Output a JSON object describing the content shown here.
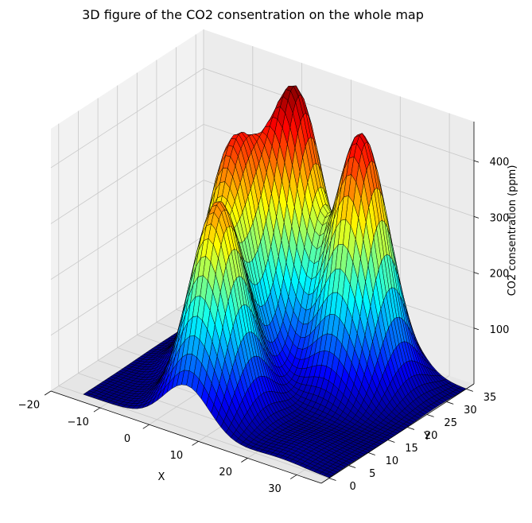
{
  "chart_data": {
    "type": "surface",
    "title": "3D figure of the CO2 consentration on the whole map",
    "xlabel": "X",
    "ylabel": "Y",
    "zlabel": "CO2 consentration (ppm)",
    "colormap": "jet",
    "xlim": [
      -20,
      35
    ],
    "ylim": [
      -2,
      37
    ],
    "zlim": [
      0,
      470
    ],
    "x_ticks": [
      -20,
      -10,
      0,
      10,
      20,
      30
    ],
    "y_ticks": [
      0,
      5,
      10,
      15,
      20,
      25,
      30,
      35
    ],
    "z_ticks": [
      100,
      200,
      300,
      400
    ],
    "grid": true,
    "surface_grid": {
      "x_range": [
        -15,
        35
      ],
      "y_range": [
        0,
        35
      ],
      "steps": 50
    },
    "peaks": [
      {
        "x": 6,
        "y": 28,
        "height": 460,
        "sigma": 4.6
      },
      {
        "x": 20,
        "y": 27,
        "height": 445,
        "sigma": 4.6
      },
      {
        "x": 0,
        "y": 19,
        "height": 380,
        "sigma": 4.6
      },
      {
        "x": 6,
        "y": 8,
        "height": 360,
        "sigma": 4.6
      },
      {
        "x": -8,
        "y": 30,
        "height": 12,
        "sigma": 4.0
      },
      {
        "x": 25,
        "y": 5,
        "height": 10,
        "sigma": 5.0
      }
    ]
  }
}
